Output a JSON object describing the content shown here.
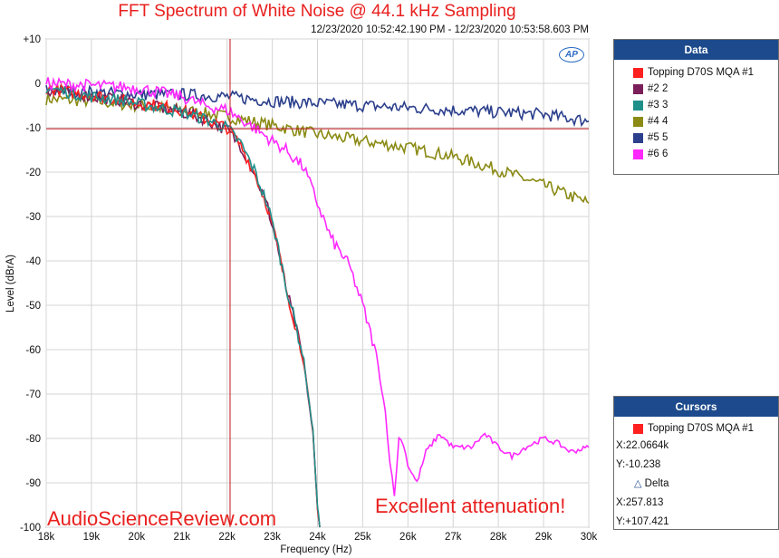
{
  "title": "FFT Spectrum of White Noise @ 44.1 kHz Sampling",
  "timestamp": "12/23/2020 10:52:42.190 PM - 12/23/2020 10:53:58.603 PM",
  "watermark": "AudioScienceReview.com",
  "annotation": "Excellent attenuation!",
  "logo_text": "AP",
  "legend_panel": {
    "title": "Data",
    "items": [
      {
        "label": "Topping D70S MQA #1",
        "color": "#ff2020"
      },
      {
        "label": "#2 2",
        "color": "#7a1f5a"
      },
      {
        "label": "#3 3",
        "color": "#1f8f8a"
      },
      {
        "label": "#4 4",
        "color": "#8a8a14"
      },
      {
        "label": "#5 5",
        "color": "#2b3f8c"
      },
      {
        "label": "#6 6",
        "color": "#ff28ff"
      }
    ]
  },
  "cursors_panel": {
    "title": "Cursors",
    "trace_label": "Topping D70S MQA #1",
    "trace_color": "#ff2020",
    "x_readout": "X:22.0664k",
    "y_readout": "Y:-10.238",
    "delta_label": "Delta",
    "delta_x": "X:257.813",
    "delta_y": "Y:+107.421"
  },
  "chart_data": {
    "type": "line",
    "xlabel": "Frequency (Hz)",
    "ylabel": "Level (dBrA)",
    "xlim": [
      18000,
      30000
    ],
    "ylim": [
      -100,
      10
    ],
    "x_ticks": [
      18000,
      19000,
      20000,
      21000,
      22000,
      23000,
      24000,
      25000,
      26000,
      27000,
      28000,
      29000,
      30000
    ],
    "x_tick_labels": [
      "18k",
      "19k",
      "20k",
      "21k",
      "22k",
      "23k",
      "24k",
      "25k",
      "26k",
      "27k",
      "28k",
      "29k",
      "30k"
    ],
    "y_ticks": [
      10,
      0,
      -10,
      -20,
      -30,
      -40,
      -50,
      -60,
      -70,
      -80,
      -90,
      -100
    ],
    "y_tick_labels": [
      "+10",
      "0",
      "-10",
      "-20",
      "-30",
      "-40",
      "-50",
      "-60",
      "-70",
      "-80",
      "-90",
      "-100"
    ],
    "grid": true,
    "cursor": {
      "x": 22066.4,
      "y": -10.238
    },
    "series": [
      {
        "name": "Topping D70S MQA #1",
        "color": "#ff2020",
        "x": [
          18000,
          18500,
          19000,
          19500,
          20000,
          20500,
          21000,
          21500,
          22000,
          22300,
          22600,
          22900,
          23100,
          23300,
          23500,
          23700,
          23900,
          24000,
          24050
        ],
        "y": [
          -1,
          -2,
          -2.5,
          -3.5,
          -4.5,
          -5,
          -6,
          -8,
          -10,
          -14,
          -20,
          -28,
          -36,
          -46,
          -54,
          -63,
          -79,
          -96,
          -100
        ]
      },
      {
        "name": "#2 2",
        "color": "#7a1f5a",
        "x": [
          18000,
          18500,
          19000,
          19500,
          20000,
          20500,
          21000,
          21500,
          22000,
          22300,
          22600,
          22900,
          23100,
          23300,
          23500,
          23700,
          23900,
          24000,
          24050
        ],
        "y": [
          -1.5,
          -2,
          -3,
          -3.5,
          -4.5,
          -5.5,
          -6.5,
          -8,
          -10.5,
          -14,
          -20,
          -28,
          -36,
          -46,
          -54,
          -63,
          -79,
          -96,
          -100
        ]
      },
      {
        "name": "#3 3",
        "color": "#1f8f8a",
        "x": [
          18000,
          18500,
          19000,
          19500,
          20000,
          20500,
          21000,
          21500,
          22000,
          22300,
          22600,
          22900,
          23100,
          23300,
          23500,
          23700,
          23900,
          24000,
          24050
        ],
        "y": [
          -1,
          -2,
          -3,
          -3.5,
          -4.5,
          -5.5,
          -6.5,
          -8,
          -10,
          -13.5,
          -19.5,
          -27.5,
          -35.5,
          -45.5,
          -53.5,
          -62.5,
          -78.5,
          -95,
          -100
        ]
      },
      {
        "name": "#4 4",
        "color": "#8a8a14",
        "x": [
          18000,
          19000,
          20000,
          21000,
          22000,
          23000,
          24000,
          25000,
          26000,
          27000,
          28000,
          29000,
          30000
        ],
        "y": [
          -3.5,
          -4,
          -5,
          -6,
          -7.5,
          -9.5,
          -11.5,
          -13,
          -14.5,
          -16.5,
          -19.5,
          -23,
          -27
        ]
      },
      {
        "name": "#5 5",
        "color": "#2b3f8c",
        "x": [
          18000,
          19000,
          20000,
          21000,
          22000,
          23000,
          24000,
          25000,
          26000,
          27000,
          28000,
          29000,
          30000
        ],
        "y": [
          -1.5,
          -2,
          -2.5,
          -2.5,
          -3,
          -4,
          -4.5,
          -5,
          -5.5,
          -6,
          -6.5,
          -7,
          -8.5
        ]
      },
      {
        "name": "#6 6",
        "color": "#ff28ff",
        "x": [
          18000,
          19000,
          20000,
          21000,
          21500,
          22000,
          22300,
          22600,
          23000,
          23300,
          23700,
          24000,
          24300,
          24700,
          25000,
          25300,
          25500,
          25600,
          25700,
          25800,
          25900,
          26000,
          26200,
          26400,
          26700,
          27000,
          27400,
          27700,
          28000,
          28300,
          28600,
          29000,
          29300,
          29600,
          30000
        ],
        "y": [
          0,
          -0.5,
          -1,
          -3,
          -5,
          -6,
          -8,
          -10,
          -13,
          -15,
          -19,
          -27,
          -35,
          -41,
          -50,
          -61,
          -74,
          -85,
          -93,
          -80,
          -81,
          -86,
          -90,
          -83,
          -79,
          -82,
          -82,
          -79,
          -82,
          -84,
          -82,
          -80,
          -81,
          -83,
          -82
        ]
      }
    ]
  }
}
